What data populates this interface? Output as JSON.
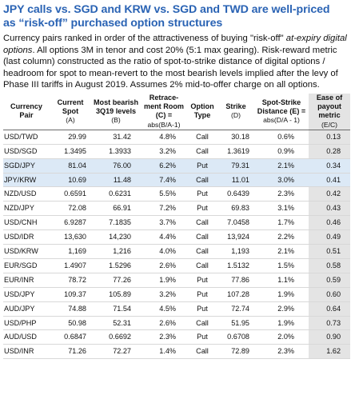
{
  "title": {
    "line1": "JPY calls vs. SGD and KRW vs. SGD and TWD are well-priced",
    "line2": "as “risk-off” purchased option structures"
  },
  "description": {
    "part1": "Currency pairs ranked in order of the attractiveness of buying \"risk-off\" ",
    "part1_italic": "at-expiry digital options",
    "part2": ". All options 3M in tenor and cost 20% (5:1 max gearing). Risk-reward metric (last column) constructed as the ratio of spot-to-strike distance of digital options / headroom for spot to mean-revert to the most bearish levels implied after the levy of Phase III tariffs in August 2019. Assumes 2% mid-to-offer charge on all options."
  },
  "table": {
    "headers": {
      "pair": "Currency Pair",
      "spot": "Current Spot",
      "spot_sub": "(A)",
      "bearish": "Most bearish 3Q19 levels",
      "bearish_sub": "(B)",
      "retrace": "Retrace-ment Room (C) =",
      "retrace_sub": "abs(B/A-1)",
      "option_type": "Option Type",
      "strike": "Strike",
      "strike_sub": "(D)",
      "distance": "Spot-Strike Distance (E) =",
      "distance_sub": "abs(D/A - 1)",
      "payout": "Ease of payout metric",
      "payout_sub": "(E/C)"
    },
    "rows": [
      {
        "pair": "USD/TWD",
        "spot": "29.99",
        "bearish": "31.42",
        "retrace": "4.8%",
        "type": "Call",
        "strike": "30.18",
        "distance": "0.6%",
        "payout": "0.13",
        "highlight": false
      },
      {
        "pair": "USD/SGD",
        "spot": "1.3495",
        "bearish": "1.3933",
        "retrace": "3.2%",
        "type": "Call",
        "strike": "1.3619",
        "distance": "0.9%",
        "payout": "0.28",
        "highlight": false
      },
      {
        "pair": "SGD/JPY",
        "spot": "81.04",
        "bearish": "76.00",
        "retrace": "6.2%",
        "type": "Put",
        "strike": "79.31",
        "distance": "2.1%",
        "payout": "0.34",
        "highlight": true
      },
      {
        "pair": "JPY/KRW",
        "spot": "10.69",
        "bearish": "11.48",
        "retrace": "7.4%",
        "type": "Call",
        "strike": "11.01",
        "distance": "3.0%",
        "payout": "0.41",
        "highlight": true
      },
      {
        "pair": "NZD/USD",
        "spot": "0.6591",
        "bearish": "0.6231",
        "retrace": "5.5%",
        "type": "Put",
        "strike": "0.6439",
        "distance": "2.3%",
        "payout": "0.42",
        "highlight": false
      },
      {
        "pair": "NZD/JPY",
        "spot": "72.08",
        "bearish": "66.91",
        "retrace": "7.2%",
        "type": "Put",
        "strike": "69.83",
        "distance": "3.1%",
        "payout": "0.43",
        "highlight": false
      },
      {
        "pair": "USD/CNH",
        "spot": "6.9287",
        "bearish": "7.1835",
        "retrace": "3.7%",
        "type": "Call",
        "strike": "7.0458",
        "distance": "1.7%",
        "payout": "0.46",
        "highlight": false
      },
      {
        "pair": "USD/IDR",
        "spot": "13,630",
        "bearish": "14,230",
        "retrace": "4.4%",
        "type": "Call",
        "strike": "13,924",
        "distance": "2.2%",
        "payout": "0.49",
        "highlight": false
      },
      {
        "pair": "USD/KRW",
        "spot": "1,169",
        "bearish": "1,216",
        "retrace": "4.0%",
        "type": "Call",
        "strike": "1,193",
        "distance": "2.1%",
        "payout": "0.51",
        "highlight": false
      },
      {
        "pair": "EUR/SGD",
        "spot": "1.4907",
        "bearish": "1.5296",
        "retrace": "2.6%",
        "type": "Call",
        "strike": "1.5132",
        "distance": "1.5%",
        "payout": "0.58",
        "highlight": false
      },
      {
        "pair": "EUR/INR",
        "spot": "78.72",
        "bearish": "77.26",
        "retrace": "1.9%",
        "type": "Put",
        "strike": "77.86",
        "distance": "1.1%",
        "payout": "0.59",
        "highlight": false
      },
      {
        "pair": "USD/JPY",
        "spot": "109.37",
        "bearish": "105.89",
        "retrace": "3.2%",
        "type": "Put",
        "strike": "107.28",
        "distance": "1.9%",
        "payout": "0.60",
        "highlight": false
      },
      {
        "pair": "AUD/JPY",
        "spot": "74.88",
        "bearish": "71.54",
        "retrace": "4.5%",
        "type": "Put",
        "strike": "72.74",
        "distance": "2.9%",
        "payout": "0.64",
        "highlight": false
      },
      {
        "pair": "USD/PHP",
        "spot": "50.98",
        "bearish": "52.31",
        "retrace": "2.6%",
        "type": "Call",
        "strike": "51.95",
        "distance": "1.9%",
        "payout": "0.73",
        "highlight": false
      },
      {
        "pair": "AUD/USD",
        "spot": "0.6847",
        "bearish": "0.6692",
        "retrace": "2.3%",
        "type": "Put",
        "strike": "0.6708",
        "distance": "2.0%",
        "payout": "0.90",
        "highlight": false
      },
      {
        "pair": "USD/INR",
        "spot": "71.26",
        "bearish": "72.27",
        "retrace": "1.4%",
        "type": "Call",
        "strike": "72.89",
        "distance": "2.3%",
        "payout": "1.62",
        "highlight": false
      }
    ]
  },
  "colors": {
    "title": "#2a63b4",
    "highlight_row": "#dce9f6",
    "last_column": "#e4e4e4"
  }
}
